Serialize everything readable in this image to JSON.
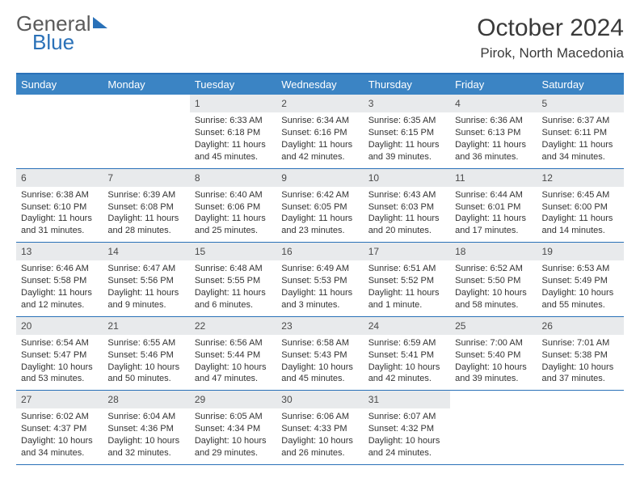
{
  "logo": {
    "text1": "General",
    "text2": "Blue"
  },
  "title": {
    "month": "October 2024",
    "location": "Pirok, North Macedonia"
  },
  "colors": {
    "header_bar": "#3b84c4",
    "border": "#2a71b8",
    "daynum_bg": "#e8eaec",
    "text": "#333333",
    "logo_gray": "#5a5a5a"
  },
  "day_labels": [
    "Sunday",
    "Monday",
    "Tuesday",
    "Wednesday",
    "Thursday",
    "Friday",
    "Saturday"
  ],
  "weeks": [
    [
      {
        "n": "",
        "sr": "",
        "ss": "",
        "dl": ""
      },
      {
        "n": "",
        "sr": "",
        "ss": "",
        "dl": ""
      },
      {
        "n": "1",
        "sr": "Sunrise: 6:33 AM",
        "ss": "Sunset: 6:18 PM",
        "dl": "Daylight: 11 hours and 45 minutes."
      },
      {
        "n": "2",
        "sr": "Sunrise: 6:34 AM",
        "ss": "Sunset: 6:16 PM",
        "dl": "Daylight: 11 hours and 42 minutes."
      },
      {
        "n": "3",
        "sr": "Sunrise: 6:35 AM",
        "ss": "Sunset: 6:15 PM",
        "dl": "Daylight: 11 hours and 39 minutes."
      },
      {
        "n": "4",
        "sr": "Sunrise: 6:36 AM",
        "ss": "Sunset: 6:13 PM",
        "dl": "Daylight: 11 hours and 36 minutes."
      },
      {
        "n": "5",
        "sr": "Sunrise: 6:37 AM",
        "ss": "Sunset: 6:11 PM",
        "dl": "Daylight: 11 hours and 34 minutes."
      }
    ],
    [
      {
        "n": "6",
        "sr": "Sunrise: 6:38 AM",
        "ss": "Sunset: 6:10 PM",
        "dl": "Daylight: 11 hours and 31 minutes."
      },
      {
        "n": "7",
        "sr": "Sunrise: 6:39 AM",
        "ss": "Sunset: 6:08 PM",
        "dl": "Daylight: 11 hours and 28 minutes."
      },
      {
        "n": "8",
        "sr": "Sunrise: 6:40 AM",
        "ss": "Sunset: 6:06 PM",
        "dl": "Daylight: 11 hours and 25 minutes."
      },
      {
        "n": "9",
        "sr": "Sunrise: 6:42 AM",
        "ss": "Sunset: 6:05 PM",
        "dl": "Daylight: 11 hours and 23 minutes."
      },
      {
        "n": "10",
        "sr": "Sunrise: 6:43 AM",
        "ss": "Sunset: 6:03 PM",
        "dl": "Daylight: 11 hours and 20 minutes."
      },
      {
        "n": "11",
        "sr": "Sunrise: 6:44 AM",
        "ss": "Sunset: 6:01 PM",
        "dl": "Daylight: 11 hours and 17 minutes."
      },
      {
        "n": "12",
        "sr": "Sunrise: 6:45 AM",
        "ss": "Sunset: 6:00 PM",
        "dl": "Daylight: 11 hours and 14 minutes."
      }
    ],
    [
      {
        "n": "13",
        "sr": "Sunrise: 6:46 AM",
        "ss": "Sunset: 5:58 PM",
        "dl": "Daylight: 11 hours and 12 minutes."
      },
      {
        "n": "14",
        "sr": "Sunrise: 6:47 AM",
        "ss": "Sunset: 5:56 PM",
        "dl": "Daylight: 11 hours and 9 minutes."
      },
      {
        "n": "15",
        "sr": "Sunrise: 6:48 AM",
        "ss": "Sunset: 5:55 PM",
        "dl": "Daylight: 11 hours and 6 minutes."
      },
      {
        "n": "16",
        "sr": "Sunrise: 6:49 AM",
        "ss": "Sunset: 5:53 PM",
        "dl": "Daylight: 11 hours and 3 minutes."
      },
      {
        "n": "17",
        "sr": "Sunrise: 6:51 AM",
        "ss": "Sunset: 5:52 PM",
        "dl": "Daylight: 11 hours and 1 minute."
      },
      {
        "n": "18",
        "sr": "Sunrise: 6:52 AM",
        "ss": "Sunset: 5:50 PM",
        "dl": "Daylight: 10 hours and 58 minutes."
      },
      {
        "n": "19",
        "sr": "Sunrise: 6:53 AM",
        "ss": "Sunset: 5:49 PM",
        "dl": "Daylight: 10 hours and 55 minutes."
      }
    ],
    [
      {
        "n": "20",
        "sr": "Sunrise: 6:54 AM",
        "ss": "Sunset: 5:47 PM",
        "dl": "Daylight: 10 hours and 53 minutes."
      },
      {
        "n": "21",
        "sr": "Sunrise: 6:55 AM",
        "ss": "Sunset: 5:46 PM",
        "dl": "Daylight: 10 hours and 50 minutes."
      },
      {
        "n": "22",
        "sr": "Sunrise: 6:56 AM",
        "ss": "Sunset: 5:44 PM",
        "dl": "Daylight: 10 hours and 47 minutes."
      },
      {
        "n": "23",
        "sr": "Sunrise: 6:58 AM",
        "ss": "Sunset: 5:43 PM",
        "dl": "Daylight: 10 hours and 45 minutes."
      },
      {
        "n": "24",
        "sr": "Sunrise: 6:59 AM",
        "ss": "Sunset: 5:41 PM",
        "dl": "Daylight: 10 hours and 42 minutes."
      },
      {
        "n": "25",
        "sr": "Sunrise: 7:00 AM",
        "ss": "Sunset: 5:40 PM",
        "dl": "Daylight: 10 hours and 39 minutes."
      },
      {
        "n": "26",
        "sr": "Sunrise: 7:01 AM",
        "ss": "Sunset: 5:38 PM",
        "dl": "Daylight: 10 hours and 37 minutes."
      }
    ],
    [
      {
        "n": "27",
        "sr": "Sunrise: 6:02 AM",
        "ss": "Sunset: 4:37 PM",
        "dl": "Daylight: 10 hours and 34 minutes."
      },
      {
        "n": "28",
        "sr": "Sunrise: 6:04 AM",
        "ss": "Sunset: 4:36 PM",
        "dl": "Daylight: 10 hours and 32 minutes."
      },
      {
        "n": "29",
        "sr": "Sunrise: 6:05 AM",
        "ss": "Sunset: 4:34 PM",
        "dl": "Daylight: 10 hours and 29 minutes."
      },
      {
        "n": "30",
        "sr": "Sunrise: 6:06 AM",
        "ss": "Sunset: 4:33 PM",
        "dl": "Daylight: 10 hours and 26 minutes."
      },
      {
        "n": "31",
        "sr": "Sunrise: 6:07 AM",
        "ss": "Sunset: 4:32 PM",
        "dl": "Daylight: 10 hours and 24 minutes."
      },
      {
        "n": "",
        "sr": "",
        "ss": "",
        "dl": ""
      },
      {
        "n": "",
        "sr": "",
        "ss": "",
        "dl": ""
      }
    ]
  ]
}
